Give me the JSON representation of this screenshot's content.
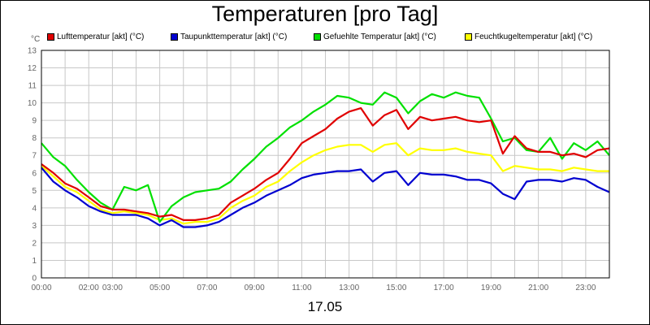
{
  "chart_data": {
    "type": "line",
    "title": "Temperaturen [pro Tag]",
    "xlabel": "17.05",
    "ylabel": "°C",
    "x_range": [
      0,
      24
    ],
    "ylim": [
      0,
      13
    ],
    "y_ticks": [
      "0",
      "1",
      "2",
      "3",
      "4",
      "5",
      "6",
      "7",
      "8",
      "9",
      "10",
      "11",
      "12",
      "13"
    ],
    "x_ticks": [
      {
        "x": 0,
        "label": "00:00"
      },
      {
        "x": 2,
        "label": "02:00"
      },
      {
        "x": 3,
        "label": "03:00"
      },
      {
        "x": 5,
        "label": "05:00"
      },
      {
        "x": 7,
        "label": "07:00"
      },
      {
        "x": 9,
        "label": "09:00"
      },
      {
        "x": 11,
        "label": "11:00"
      },
      {
        "x": 13,
        "label": "13:00"
      },
      {
        "x": 15,
        "label": "15:00"
      },
      {
        "x": 17,
        "label": "17:00"
      },
      {
        "x": 19,
        "label": "19:00"
      },
      {
        "x": 21,
        "label": "21:00"
      },
      {
        "x": 23,
        "label": "23:00"
      }
    ],
    "grid": true,
    "legend_position": "top",
    "series": [
      {
        "name": "Lufttemperatur [akt] (°C)",
        "color": "#e00000",
        "x": [
          0,
          0.5,
          1,
          1.5,
          2,
          2.5,
          3,
          3.5,
          4,
          4.5,
          5,
          5.5,
          6,
          6.5,
          7,
          7.5,
          8,
          8.5,
          9,
          9.5,
          10,
          10.5,
          11,
          11.5,
          12,
          12.5,
          13,
          13.5,
          14,
          14.5,
          15,
          15.5,
          16,
          16.5,
          17,
          17.5,
          18,
          18.5,
          19,
          19.5,
          20,
          20.5,
          21,
          21.5,
          22,
          22.5,
          23,
          23.5,
          24
        ],
        "y": [
          6.5,
          6.0,
          5.4,
          5.1,
          4.6,
          4.1,
          3.9,
          3.9,
          3.8,
          3.7,
          3.5,
          3.6,
          3.3,
          3.3,
          3.4,
          3.6,
          4.3,
          4.7,
          5.1,
          5.6,
          6.0,
          6.8,
          7.7,
          8.1,
          8.5,
          9.1,
          9.5,
          9.7,
          8.7,
          9.3,
          9.6,
          8.5,
          9.2,
          9.0,
          9.1,
          9.2,
          9.0,
          8.9,
          9.0,
          7.1,
          8.1,
          7.4,
          7.2,
          7.2,
          7.0,
          7.1,
          6.9,
          7.3,
          7.4
        ]
      },
      {
        "name": "Taupunkttemperatur [akt] (°C)",
        "color": "#0000d0",
        "x": [
          0,
          0.5,
          1,
          1.5,
          2,
          2.5,
          3,
          3.5,
          4,
          4.5,
          5,
          5.5,
          6,
          6.5,
          7,
          7.5,
          8,
          8.5,
          9,
          9.5,
          10,
          10.5,
          11,
          11.5,
          12,
          12.5,
          13,
          13.5,
          14,
          14.5,
          15,
          15.5,
          16,
          16.5,
          17,
          17.5,
          18,
          18.5,
          19,
          19.5,
          20,
          20.5,
          21,
          21.5,
          22,
          22.5,
          23,
          23.5,
          24
        ],
        "y": [
          6.3,
          5.5,
          5.0,
          4.6,
          4.1,
          3.8,
          3.6,
          3.6,
          3.6,
          3.4,
          3.0,
          3.3,
          2.9,
          2.9,
          3.0,
          3.2,
          3.6,
          4.0,
          4.3,
          4.7,
          5.0,
          5.3,
          5.7,
          5.9,
          6.0,
          6.1,
          6.1,
          6.2,
          5.5,
          6.0,
          6.1,
          5.3,
          6.0,
          5.9,
          5.9,
          5.8,
          5.6,
          5.6,
          5.4,
          4.8,
          4.5,
          5.5,
          5.6,
          5.6,
          5.5,
          5.7,
          5.6,
          5.2,
          4.9
        ]
      },
      {
        "name": "Gefuehlte Temperatur [akt] (°C)",
        "color": "#00e000",
        "x": [
          0,
          0.5,
          1,
          1.5,
          2,
          2.5,
          3,
          3.5,
          4,
          4.5,
          5,
          5.5,
          6,
          6.5,
          7,
          7.5,
          8,
          8.5,
          9,
          9.5,
          10,
          10.5,
          11,
          11.5,
          12,
          12.5,
          13,
          13.5,
          14,
          14.5,
          15,
          15.5,
          16,
          16.5,
          17,
          17.5,
          18,
          18.5,
          19,
          19.5,
          20,
          20.5,
          21,
          21.5,
          22,
          22.5,
          23,
          23.5,
          24
        ],
        "y": [
          7.7,
          6.9,
          6.4,
          5.6,
          4.9,
          4.3,
          3.9,
          5.2,
          5.0,
          5.3,
          3.2,
          4.1,
          4.6,
          4.9,
          5.0,
          5.1,
          5.5,
          6.2,
          6.8,
          7.5,
          8.0,
          8.6,
          9.0,
          9.5,
          9.9,
          10.4,
          10.3,
          10.0,
          9.9,
          10.6,
          10.3,
          9.4,
          10.1,
          10.5,
          10.3,
          10.6,
          10.4,
          10.3,
          9.1,
          7.8,
          8.0,
          7.3,
          7.2,
          8.0,
          6.8,
          7.7,
          7.3,
          7.8,
          7.0
        ]
      },
      {
        "name": "Feuchtkugeltemperatur [akt] (°C)",
        "color": "#ffff00",
        "x": [
          0,
          0.5,
          1,
          1.5,
          2,
          2.5,
          3,
          3.5,
          4,
          4.5,
          5,
          5.5,
          6,
          6.5,
          7,
          7.5,
          8,
          8.5,
          9,
          9.5,
          10,
          10.5,
          11,
          11.5,
          12,
          12.5,
          13,
          13.5,
          14,
          14.5,
          15,
          15.5,
          16,
          16.5,
          17,
          17.5,
          18,
          18.5,
          19,
          19.5,
          20,
          20.5,
          21,
          21.5,
          22,
          22.5,
          23,
          23.5,
          24
        ],
        "y": [
          6.4,
          5.8,
          5.2,
          4.9,
          4.4,
          3.9,
          3.7,
          3.8,
          3.7,
          3.6,
          3.3,
          3.4,
          3.1,
          3.2,
          3.2,
          3.4,
          4.0,
          4.4,
          4.7,
          5.2,
          5.5,
          6.1,
          6.6,
          7.0,
          7.3,
          7.5,
          7.6,
          7.6,
          7.2,
          7.6,
          7.7,
          7.0,
          7.4,
          7.3,
          7.3,
          7.4,
          7.2,
          7.1,
          7.0,
          6.1,
          6.4,
          6.3,
          6.2,
          6.2,
          6.1,
          6.3,
          6.2,
          6.1,
          6.1
        ]
      }
    ]
  }
}
